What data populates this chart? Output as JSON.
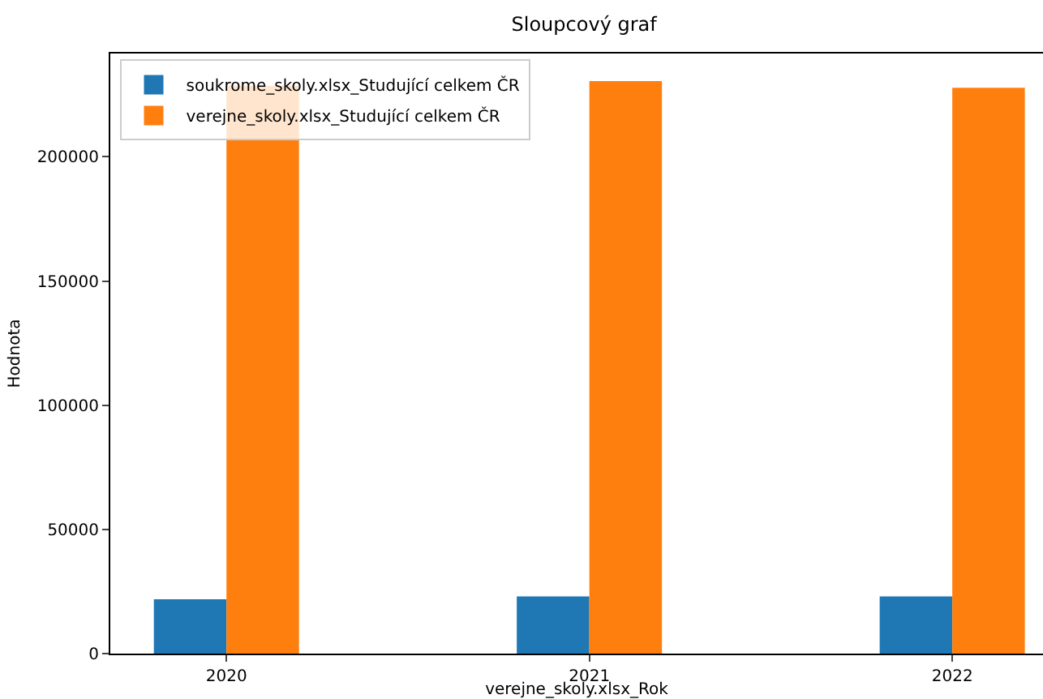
{
  "chart_data": {
    "type": "bar",
    "title": "Sloupcový graf",
    "xlabel": "verejne_skoly.xlsx_Rok",
    "ylabel": "Hodnota",
    "categories": [
      "2020",
      "2021",
      "2022"
    ],
    "series": [
      {
        "name": "soukrome_skoly.xlsx_Studující celkem ČR",
        "color": "#1f77b4",
        "values": [
          21900,
          23000,
          23000
        ]
      },
      {
        "name": "verejne_skoly.xlsx_Studující celkem ČR",
        "color": "#ff7f0e",
        "values": [
          228600,
          230500,
          227800
        ]
      }
    ],
    "ylim": [
      0,
      241600
    ],
    "yticks": [
      0,
      50000,
      100000,
      150000,
      200000
    ],
    "grid": false,
    "legend": "top left"
  }
}
